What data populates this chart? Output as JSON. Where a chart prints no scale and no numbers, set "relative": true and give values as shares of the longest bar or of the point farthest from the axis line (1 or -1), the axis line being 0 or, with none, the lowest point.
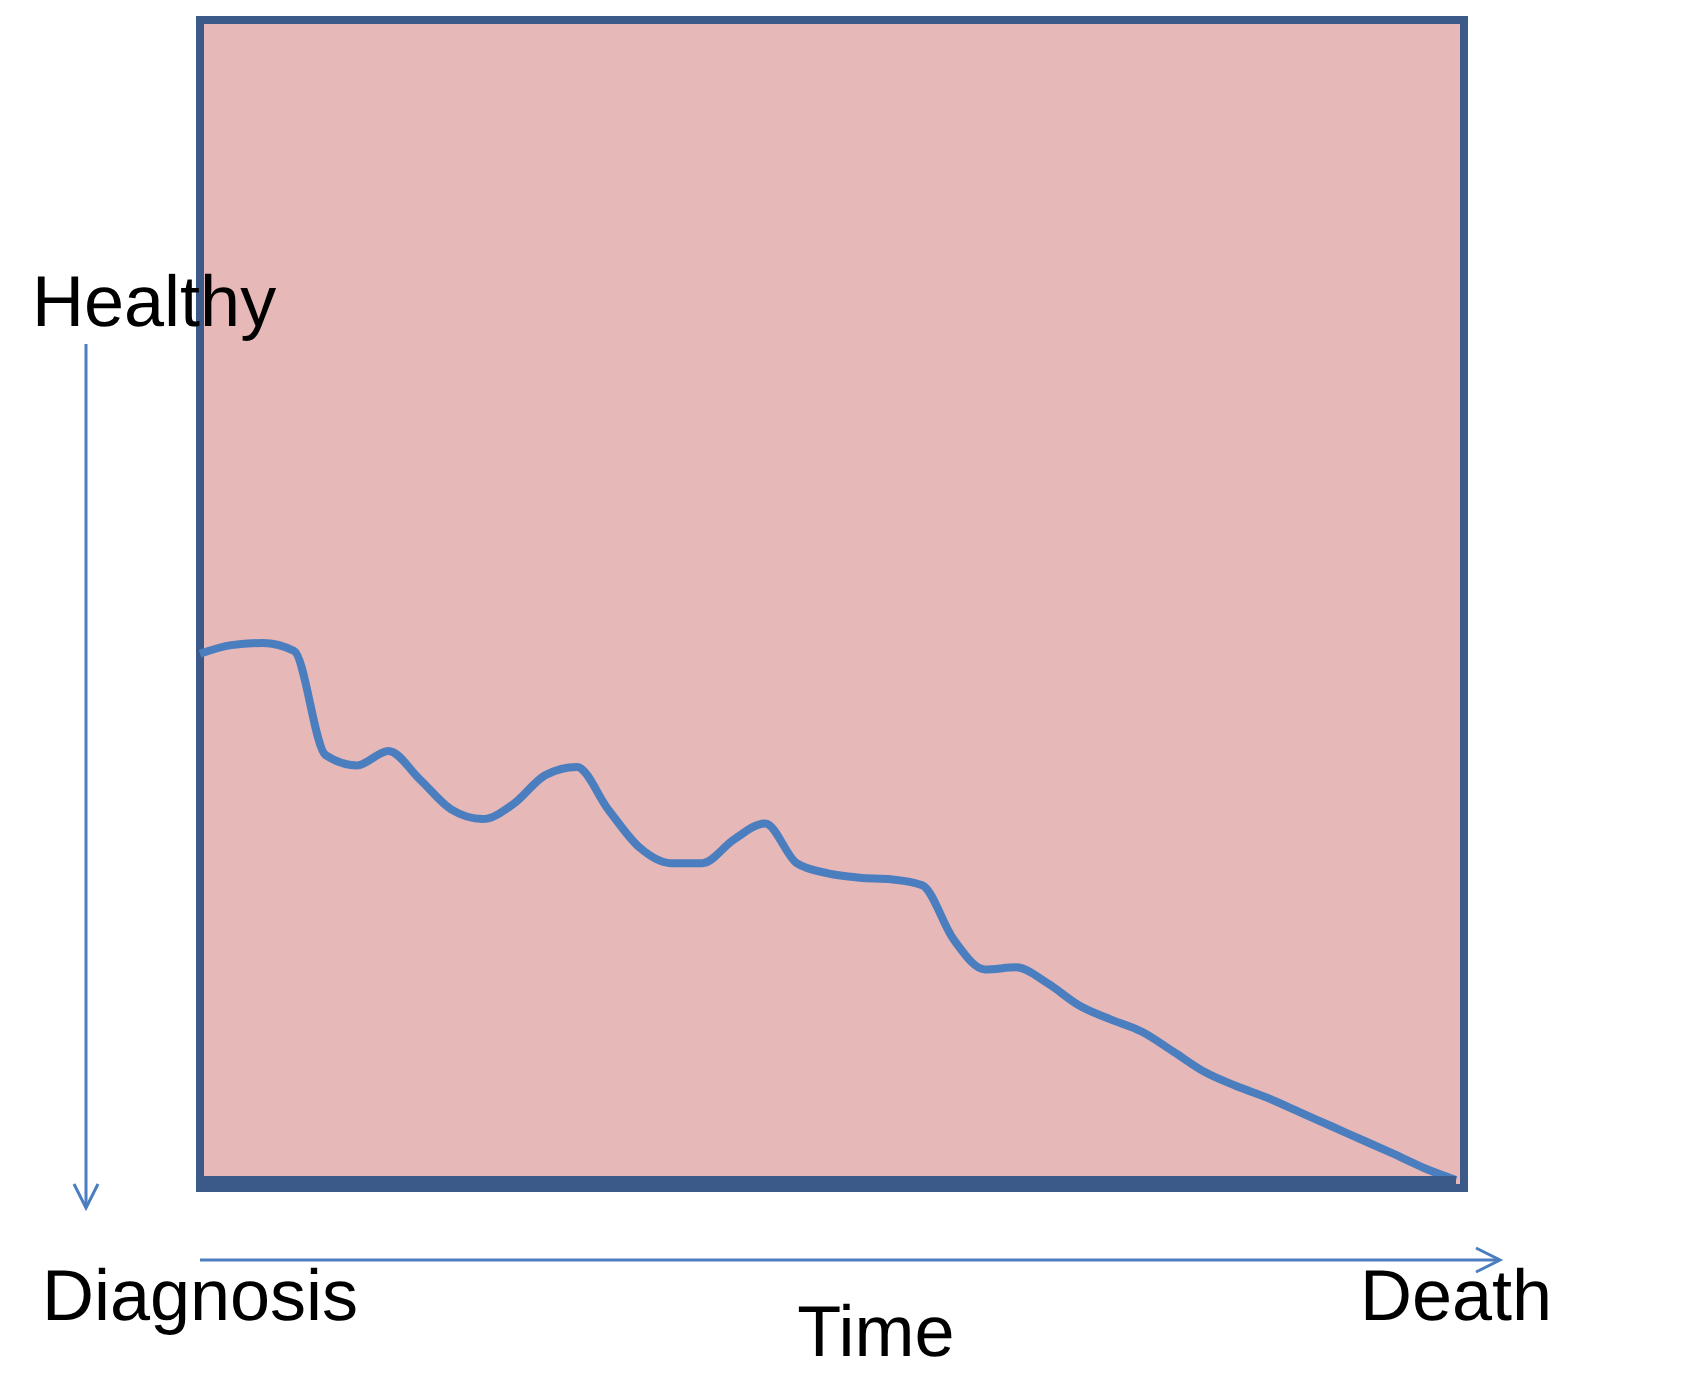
{
  "chart_data": {
    "type": "line",
    "relative": true,
    "xlabel": "Time",
    "ylabel": "Healthy",
    "legend": false,
    "categories": [
      "Diagnosis",
      null,
      null,
      null,
      null,
      null,
      null,
      null,
      null,
      null,
      null,
      null,
      null,
      null,
      null,
      null,
      null,
      null,
      null,
      null,
      null,
      null,
      null,
      null,
      null,
      null,
      null,
      null,
      null,
      null,
      null,
      null,
      null,
      null,
      null,
      null,
      null,
      null,
      null,
      null,
      "Death"
    ],
    "series": [
      {
        "color": "#4a7ebf",
        "values": [
          0.98,
          0.996,
          1,
          0.985,
          0.791,
          0.772,
          0.799,
          0.746,
          0.69,
          0.672,
          0.701,
          0.754,
          0.769,
          0.69,
          0.619,
          0.59,
          0.59,
          0.634,
          0.664,
          0.59,
          0.571,
          0.563,
          0.56,
          0.549,
          0.448,
          0.392,
          0.396,
          0.366,
          0.325,
          0.299,
          0.276,
          0.239,
          0.201,
          0.175,
          0.153,
          0.127,
          0.101,
          0.075,
          0.049,
          0.022,
          0
        ]
      }
    ]
  }
}
